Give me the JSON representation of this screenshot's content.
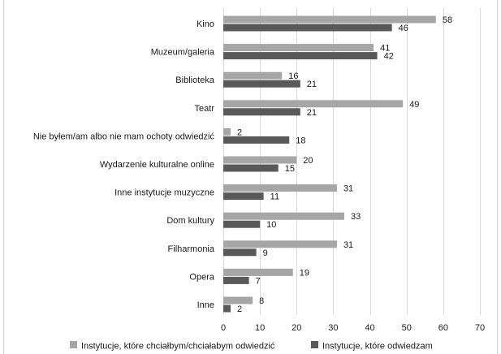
{
  "chart_data": {
    "type": "bar",
    "orientation": "horizontal",
    "categories": [
      "Kino",
      "Muzeum/galeria",
      "Biblioteka",
      "Teatr",
      "Nie byłem/am albo nie mam ochoty odwiedzić",
      "Wydarzenie kulturalne online",
      "Inne instytucje muzyczne",
      "Dom kultury",
      "Filharmonia",
      "Opera",
      "Inne"
    ],
    "series": [
      {
        "name": "Instytucje, które chciałbym/chciałabym odwiedzić",
        "color": "#a6a6a6",
        "values": [
          58,
          41,
          16,
          49,
          2,
          20,
          31,
          33,
          31,
          19,
          8
        ]
      },
      {
        "name": "Instytucje, które odwiedzam",
        "color": "#595959",
        "values": [
          46,
          42,
          21,
          21,
          18,
          15,
          11,
          10,
          9,
          7,
          2
        ]
      }
    ],
    "xlim": [
      0,
      70
    ],
    "xticks": [
      0,
      10,
      20,
      30,
      40,
      50,
      60,
      70
    ],
    "grid": true,
    "legend_position": "bottom"
  }
}
